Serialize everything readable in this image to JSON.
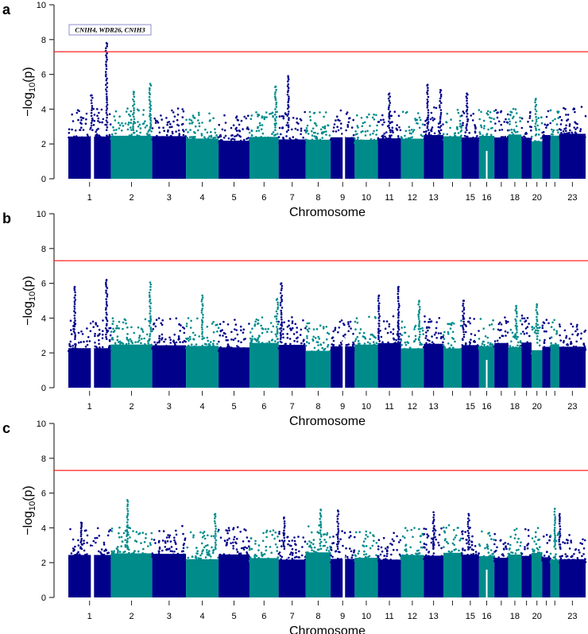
{
  "chart_data": {
    "type": "scatter",
    "subtype": "manhattan",
    "colors": {
      "odd": "#00008B",
      "even": "#008B8B",
      "threshold": "#FF2020",
      "annotation_border": "#7070C8"
    },
    "chromosomes": [
      "1",
      "2",
      "3",
      "4",
      "5",
      "6",
      "7",
      "8",
      "9",
      "10",
      "11",
      "12",
      "13",
      "14",
      "15",
      "16",
      "17",
      "18",
      "19",
      "20",
      "21",
      "22",
      "23"
    ],
    "chromosome_tick_labels": [
      "1",
      "2",
      "3",
      "4",
      "5",
      "6",
      "7",
      "8",
      "9",
      "10",
      "11",
      "12",
      "13",
      "",
      "15",
      "16",
      "",
      "18",
      "",
      "20",
      "",
      "",
      "23"
    ],
    "chromosome_lengths_mb": [
      249,
      243,
      198,
      191,
      181,
      171,
      159,
      146,
      141,
      136,
      135,
      134,
      115,
      107,
      102,
      90,
      81,
      78,
      59,
      63,
      48,
      51,
      155
    ],
    "ylim": [
      0,
      10
    ],
    "yticks": [
      "0",
      "2",
      "4",
      "6",
      "8",
      "10"
    ],
    "ylabel_main": "−log",
    "ylabel_sub": "10",
    "ylabel_tail": "(p)",
    "xlabel": "Chromosome",
    "threshold": 7.3,
    "panels": [
      {
        "letter": "a",
        "annotation": "CNIH4, WDR26, CNIH3",
        "peaks": [
          {
            "chr": 1,
            "pos": 0.9,
            "max": 7.8
          },
          {
            "chr": 1,
            "pos": 0.55,
            "max": 4.8
          },
          {
            "chr": 2,
            "pos": 0.55,
            "max": 5.0
          },
          {
            "chr": 2,
            "pos": 0.95,
            "max": 5.45
          },
          {
            "chr": 6,
            "pos": 0.9,
            "max": 5.3
          },
          {
            "chr": 7,
            "pos": 0.35,
            "max": 5.9
          },
          {
            "chr": 11,
            "pos": 0.5,
            "max": 4.9
          },
          {
            "chr": 13,
            "pos": 0.2,
            "max": 5.4
          },
          {
            "chr": 13,
            "pos": 0.85,
            "max": 5.1
          },
          {
            "chr": 15,
            "pos": 0.3,
            "max": 4.9
          },
          {
            "chr": 20,
            "pos": 0.4,
            "max": 4.6
          }
        ]
      },
      {
        "letter": "b",
        "annotation": "",
        "peaks": [
          {
            "chr": 1,
            "pos": 0.9,
            "max": 6.2
          },
          {
            "chr": 1,
            "pos": 0.15,
            "max": 5.8
          },
          {
            "chr": 2,
            "pos": 0.95,
            "max": 6.05
          },
          {
            "chr": 4,
            "pos": 0.5,
            "max": 5.3
          },
          {
            "chr": 6,
            "pos": 0.95,
            "max": 5.1
          },
          {
            "chr": 7,
            "pos": 0.1,
            "max": 6.0
          },
          {
            "chr": 11,
            "pos": 0.05,
            "max": 5.3
          },
          {
            "chr": 11,
            "pos": 0.9,
            "max": 5.8
          },
          {
            "chr": 12,
            "pos": 0.8,
            "max": 5.0
          },
          {
            "chr": 15,
            "pos": 0.1,
            "max": 5.0
          },
          {
            "chr": 18,
            "pos": 0.6,
            "max": 4.7
          },
          {
            "chr": 20,
            "pos": 0.5,
            "max": 4.8
          }
        ]
      },
      {
        "letter": "c",
        "annotation": "",
        "peaks": [
          {
            "chr": 2,
            "pos": 0.4,
            "max": 5.6
          },
          {
            "chr": 1,
            "pos": 0.3,
            "max": 4.3
          },
          {
            "chr": 4,
            "pos": 0.9,
            "max": 4.8
          },
          {
            "chr": 7,
            "pos": 0.2,
            "max": 4.6
          },
          {
            "chr": 8,
            "pos": 0.6,
            "max": 5.05
          },
          {
            "chr": 9,
            "pos": 0.3,
            "max": 5.0
          },
          {
            "chr": 13,
            "pos": 0.5,
            "max": 4.9
          },
          {
            "chr": 15,
            "pos": 0.4,
            "max": 4.8
          },
          {
            "chr": 22,
            "pos": 0.5,
            "max": 5.1
          },
          {
            "chr": 23,
            "pos": 0.02,
            "max": 4.8
          }
        ]
      }
    ]
  }
}
